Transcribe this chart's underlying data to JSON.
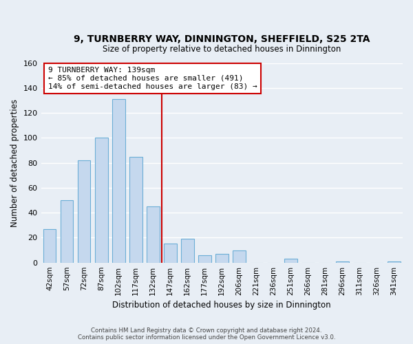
{
  "title": "9, TURNBERRY WAY, DINNINGTON, SHEFFIELD, S25 2TA",
  "subtitle": "Size of property relative to detached houses in Dinnington",
  "xlabel": "Distribution of detached houses by size in Dinnington",
  "ylabel": "Number of detached properties",
  "bar_labels": [
    "42sqm",
    "57sqm",
    "72sqm",
    "87sqm",
    "102sqm",
    "117sqm",
    "132sqm",
    "147sqm",
    "162sqm",
    "177sqm",
    "192sqm",
    "206sqm",
    "221sqm",
    "236sqm",
    "251sqm",
    "266sqm",
    "281sqm",
    "296sqm",
    "311sqm",
    "326sqm",
    "341sqm"
  ],
  "bar_values": [
    27,
    50,
    82,
    100,
    131,
    85,
    45,
    15,
    19,
    6,
    7,
    10,
    0,
    0,
    3,
    0,
    0,
    1,
    0,
    0,
    1
  ],
  "bar_color": "#c5d8ee",
  "bar_edge_color": "#6baed6",
  "bar_width": 0.75,
  "ylim": [
    0,
    160
  ],
  "yticks": [
    0,
    20,
    40,
    60,
    80,
    100,
    120,
    140,
    160
  ],
  "vline_x": 6.5,
  "vline_color": "#cc0000",
  "annotation_title": "9 TURNBERRY WAY: 139sqm",
  "annotation_line1": "← 85% of detached houses are smaller (491)",
  "annotation_line2": "14% of semi-detached houses are larger (83) →",
  "annotation_box_color": "#ffffff",
  "annotation_box_edge": "#cc0000",
  "bg_color": "#e8eef5",
  "footer1": "Contains HM Land Registry data © Crown copyright and database right 2024.",
  "footer2": "Contains public sector information licensed under the Open Government Licence v3.0."
}
